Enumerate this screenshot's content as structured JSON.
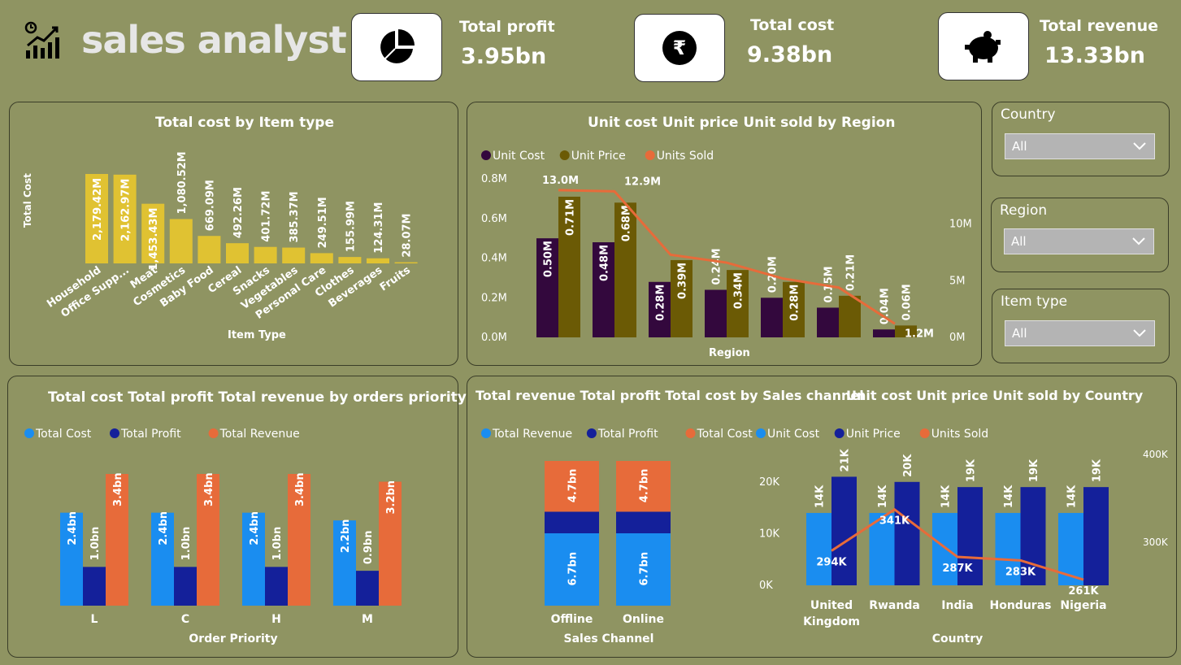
{
  "header": {
    "title": "sales analyst"
  },
  "kpis": [
    {
      "label": "Total profit",
      "value": "3.95bn",
      "icon": "pie-chart-icon"
    },
    {
      "label": "Total cost",
      "value": "9.38bn",
      "icon": "rupee-icon"
    },
    {
      "label": "Total revenue",
      "value": "13.33bn",
      "icon": "piggy-bank-icon"
    }
  ],
  "slicers": [
    {
      "label": "Country",
      "value": "All"
    },
    {
      "label": "Region",
      "value": "All"
    },
    {
      "label": "Item type",
      "value": "All"
    }
  ],
  "colors": {
    "background": "#8f9462",
    "yellow": "#e0c232",
    "dark_purple": "#33083d",
    "olive_dark": "#6b5a05",
    "orange": "#e76b3a",
    "blue": "#1a8df0",
    "navy": "#14209a"
  },
  "chart_data": [
    {
      "id": "cost_by_item",
      "type": "bar",
      "title": "Total cost by Item type",
      "xlabel": "Item Type",
      "ylabel": "Total Cost",
      "categories": [
        "Household",
        "Office Supp...",
        "Meat",
        "Cosmetics",
        "Baby Food",
        "Cereal",
        "Snacks",
        "Vegetables",
        "Personal Care",
        "Clothes",
        "Beverages",
        "Fruits"
      ],
      "values": [
        2179.42,
        2162.97,
        1453.43,
        1080.52,
        669.09,
        492.26,
        401.72,
        385.37,
        249.51,
        155.99,
        124.31,
        28.07
      ],
      "labels": [
        "2,179.42M",
        "2,162.97M",
        "1,453.43M",
        "1,080.52M",
        "669.09M",
        "492.26M",
        "401.72M",
        "385.37M",
        "249.51M",
        "155.99M",
        "124.31M",
        "28.07M"
      ],
      "grid": false
    },
    {
      "id": "by_region",
      "type": "bar",
      "title": "Unit cost Unit price Unit sold by Region",
      "xlabel": "Region",
      "ylim": [
        0,
        0.8
      ],
      "y_ticks": [
        "0.0M",
        "0.2M",
        "0.4M",
        "0.6M",
        "0.8M"
      ],
      "y2_ticks": [
        "0M",
        "5M",
        "10M"
      ],
      "y2lim": [
        0,
        14
      ],
      "series": [
        {
          "name": "Unit Cost",
          "values": [
            0.5,
            0.48,
            0.28,
            0.24,
            0.2,
            0.15,
            0.04
          ],
          "labels": [
            "0.50M",
            "0.48M",
            "0.28M",
            "0.24M",
            "0.20M",
            "0.15M",
            "0.04M"
          ]
        },
        {
          "name": "Unit Price",
          "values": [
            0.71,
            0.68,
            0.39,
            0.34,
            0.28,
            0.21,
            0.06
          ],
          "labels": [
            "0.71M",
            "0.68M",
            "0.39M",
            "0.34M",
            "0.28M",
            "0.21M",
            "0.06M"
          ]
        },
        {
          "name": "Units Sold",
          "values": [
            13.0,
            12.9,
            7.3,
            6.6,
            5.2,
            4.4,
            1.2
          ],
          "labels": [
            "13.0M",
            "12.9M",
            "",
            "",
            "",
            "",
            "1.2M"
          ]
        }
      ]
    },
    {
      "id": "by_priority",
      "type": "bar",
      "title": "Total cost Total profit Total revenue by orders priority",
      "xlabel": "Order Priority",
      "categories": [
        "L",
        "C",
        "H",
        "M"
      ],
      "ylim": [
        0,
        3.6
      ],
      "series": [
        {
          "name": "Total Cost",
          "values": [
            2.4,
            2.4,
            2.4,
            2.2
          ],
          "labels": [
            "2.4bn",
            "2.4bn",
            "2.4bn",
            "2.2bn"
          ]
        },
        {
          "name": "Total Profit",
          "values": [
            1.0,
            1.0,
            1.0,
            0.9
          ],
          "labels": [
            "1.0bn",
            "1.0bn",
            "1.0bn",
            "0.9bn"
          ]
        },
        {
          "name": "Total Revenue",
          "values": [
            3.4,
            3.4,
            3.4,
            3.2
          ],
          "labels": [
            "3.4bn",
            "3.4bn",
            "3.4bn",
            "3.2bn"
          ]
        }
      ]
    },
    {
      "id": "by_channel",
      "type": "bar",
      "title": "Total revenue Total profit Total cost by Sales channel",
      "xlabel": "Sales Channel",
      "categories": [
        "Offline",
        "Online"
      ],
      "stacked": true,
      "series": [
        {
          "name": "Total Revenue",
          "values": [
            6.7,
            6.7
          ],
          "labels": [
            "6.7bn",
            "6.7bn"
          ]
        },
        {
          "name": "Total Profit",
          "values": [
            2.0,
            2.0
          ],
          "labels": [
            "",
            ""
          ]
        },
        {
          "name": "Total Cost",
          "values": [
            4.7,
            4.7
          ],
          "labels": [
            "4.7bn",
            "4.7bn"
          ]
        }
      ]
    },
    {
      "id": "by_country",
      "type": "bar",
      "title": "Unit cost Unit price Unit sold by Country",
      "xlabel": "Country",
      "categories": [
        "United Kingdom",
        "Rwanda",
        "India",
        "Honduras",
        "Nigeria"
      ],
      "ylim": [
        0,
        25
      ],
      "y_ticks": [
        "0K",
        "10K",
        "20K"
      ],
      "y2_ticks": [
        "300K",
        "400K"
      ],
      "series": [
        {
          "name": "Unit Cost",
          "values": [
            14,
            14,
            14,
            14,
            14
          ],
          "labels": [
            "14K",
            "14K",
            "14K",
            "14K",
            "14K"
          ]
        },
        {
          "name": "Unit Price",
          "values": [
            21,
            20,
            19,
            19,
            19
          ],
          "labels": [
            "21K",
            "20K",
            "19K",
            "19K",
            "19K"
          ]
        },
        {
          "name": "Units Sold",
          "values": [
            294,
            341,
            287,
            283,
            261
          ],
          "labels": [
            "294K",
            "341K",
            "287K",
            "283K",
            "261K"
          ]
        }
      ]
    }
  ]
}
